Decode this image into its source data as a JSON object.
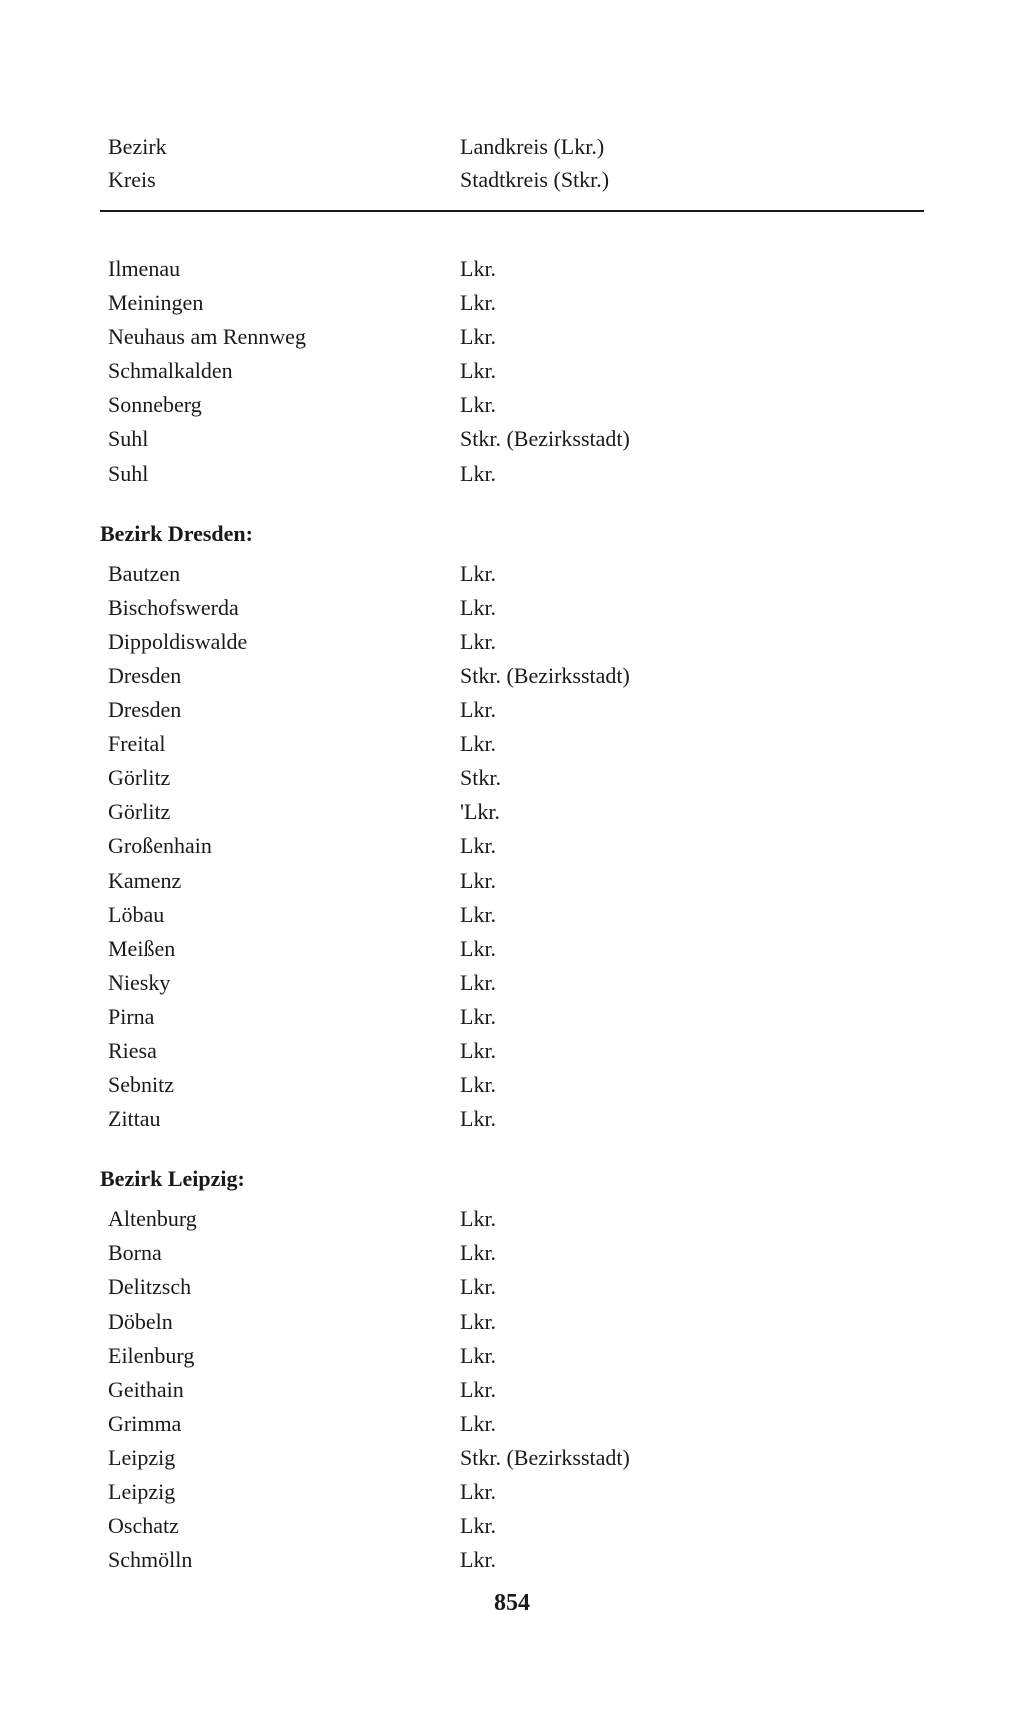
{
  "header": {
    "left_line1": "Bezirk",
    "left_line2": "Kreis",
    "right_line1": "Landkreis (Lkr.)",
    "right_line2": "Stadtkreis (Stkr.)"
  },
  "sections": [
    {
      "title": null,
      "rows": [
        {
          "name": "Ilmenau",
          "type": "Lkr."
        },
        {
          "name": "Meiningen",
          "type": "Lkr."
        },
        {
          "name": "Neuhaus am Rennweg",
          "type": "Lkr."
        },
        {
          "name": "Schmalkalden",
          "type": "Lkr."
        },
        {
          "name": "Sonneberg",
          "type": "Lkr."
        },
        {
          "name": "Suhl",
          "type": "Stkr. (Bezirksstadt)"
        },
        {
          "name": "Suhl",
          "type": "Lkr."
        }
      ]
    },
    {
      "title": "Bezirk Dresden:",
      "rows": [
        {
          "name": "Bautzen",
          "type": "Lkr."
        },
        {
          "name": "Bischofswerda",
          "type": "Lkr."
        },
        {
          "name": "Dippoldiswalde",
          "type": "Lkr."
        },
        {
          "name": "Dresden",
          "type": "Stkr. (Bezirksstadt)"
        },
        {
          "name": "Dresden",
          "type": "Lkr."
        },
        {
          "name": "Freital",
          "type": "Lkr."
        },
        {
          "name": "Görlitz",
          "type": "Stkr."
        },
        {
          "name": "Görlitz",
          "type": "'Lkr."
        },
        {
          "name": "Großenhain",
          "type": "Lkr."
        },
        {
          "name": "Kamenz",
          "type": "Lkr."
        },
        {
          "name": "Löbau",
          "type": "Lkr."
        },
        {
          "name": "Meißen",
          "type": "Lkr."
        },
        {
          "name": "Niesky",
          "type": "Lkr."
        },
        {
          "name": "Pirna",
          "type": "Lkr."
        },
        {
          "name": "Riesa",
          "type": "Lkr."
        },
        {
          "name": "Sebnitz",
          "type": "Lkr."
        },
        {
          "name": "Zittau",
          "type": "Lkr."
        }
      ]
    },
    {
      "title": "Bezirk Leipzig:",
      "rows": [
        {
          "name": "Altenburg",
          "type": "Lkr."
        },
        {
          "name": "Borna",
          "type": "Lkr."
        },
        {
          "name": "Delitzsch",
          "type": "Lkr."
        },
        {
          "name": "Döbeln",
          "type": "Lkr."
        },
        {
          "name": "Eilenburg",
          "type": "Lkr."
        },
        {
          "name": "Geithain",
          "type": "Lkr."
        },
        {
          "name": "Grimma",
          "type": "Lkr."
        },
        {
          "name": "Leipzig",
          "type": "Stkr. (Bezirksstadt)"
        },
        {
          "name": "Leipzig",
          "type": "Lkr."
        },
        {
          "name": "Oschatz",
          "type": "Lkr."
        },
        {
          "name": "Schmölln",
          "type": "Lkr."
        }
      ]
    }
  ],
  "page_number": "854",
  "colors": {
    "text": "#1a1a1a",
    "background": "#ffffff",
    "divider": "#1a1a1a"
  },
  "typography": {
    "body_fontsize": 22,
    "title_fontsize": 22,
    "page_number_fontsize": 24
  }
}
